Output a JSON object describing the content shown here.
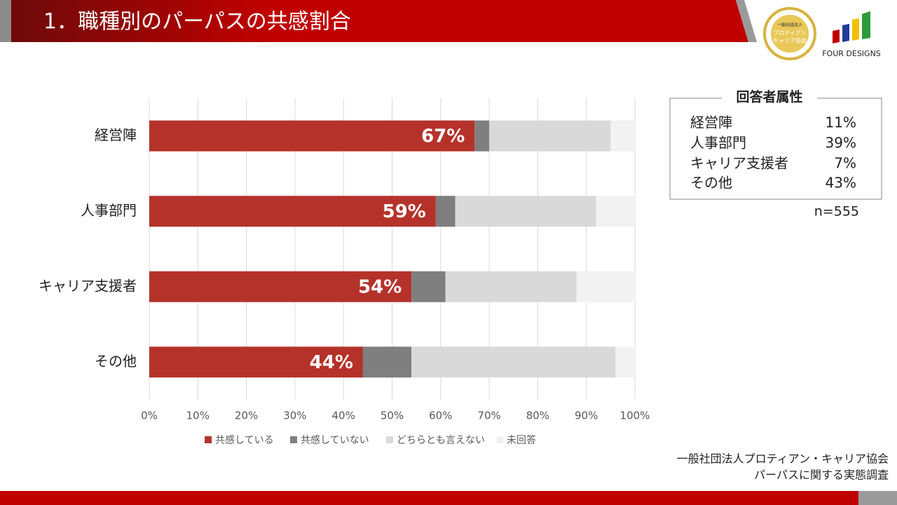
{
  "header": {
    "title": "1．職種別のパーパスの共感割合"
  },
  "logos": {
    "badge": [
      "一般社団法人",
      "プロティアン",
      "キャリア協会"
    ],
    "brand": "FOUR DESIGNS"
  },
  "chart_data": {
    "type": "stacked-bar-horizontal",
    "categories": [
      "経営陣",
      "人事部門",
      "キャリア支援者",
      "その他"
    ],
    "series": [
      {
        "name": "共感している",
        "color": "#b5322a",
        "values": [
          67,
          59,
          54,
          44
        ],
        "value_labels": [
          "67%",
          "59%",
          "54%",
          "44%"
        ]
      },
      {
        "name": "共感していない",
        "color": "#7f7f7f",
        "values": [
          3,
          4,
          7,
          10
        ]
      },
      {
        "name": "どちらとも言えない",
        "color": "#d9d9d9",
        "values": [
          25,
          29,
          27,
          42
        ]
      },
      {
        "name": "未回答",
        "color": "#f2f2f2",
        "values": [
          5,
          8,
          12,
          4
        ]
      }
    ],
    "xlim": [
      0,
      100
    ],
    "xticks": [
      {
        "value": 0,
        "label": "0%"
      },
      {
        "value": 10,
        "label": "10%"
      },
      {
        "value": 20,
        "label": "20%"
      },
      {
        "value": 30,
        "label": "30%"
      },
      {
        "value": 40,
        "label": "40%"
      },
      {
        "value": 50,
        "label": "50%"
      },
      {
        "value": 60,
        "label": "60%"
      },
      {
        "value": 70,
        "label": "70%"
      },
      {
        "value": 80,
        "label": "80%"
      },
      {
        "value": 90,
        "label": "90%"
      },
      {
        "value": 100,
        "label": "100%"
      }
    ],
    "grid": true,
    "legend": "bottom"
  },
  "respondents": {
    "title": "回答者属性",
    "rows": [
      [
        "経営陣",
        "11%"
      ],
      [
        "人事部門",
        "39%"
      ],
      [
        "キャリア支援者",
        "7%"
      ],
      [
        "その他",
        "43%"
      ]
    ],
    "n": "n=555"
  },
  "source": [
    "一般社団法人プロティアン・キャリア協会",
    "パーパスに関する実態調査"
  ]
}
